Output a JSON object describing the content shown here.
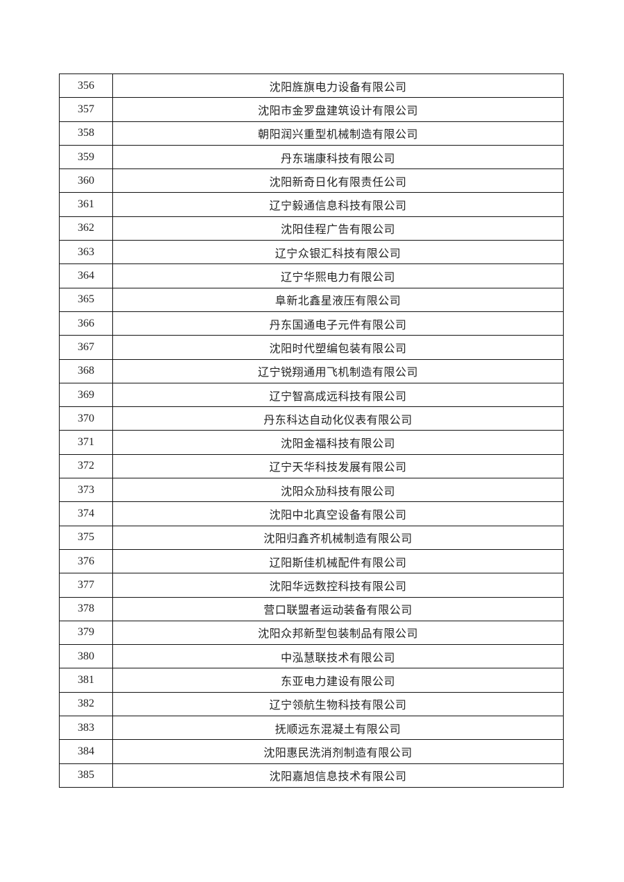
{
  "table": {
    "rows": [
      {
        "no": "356",
        "name": "沈阳旌旗电力设备有限公司"
      },
      {
        "no": "357",
        "name": "沈阳市金罗盘建筑设计有限公司"
      },
      {
        "no": "358",
        "name": "朝阳润兴重型机械制造有限公司"
      },
      {
        "no": "359",
        "name": "丹东瑞康科技有限公司"
      },
      {
        "no": "360",
        "name": "沈阳新奇日化有限责任公司"
      },
      {
        "no": "361",
        "name": "辽宁毅通信息科技有限公司"
      },
      {
        "no": "362",
        "name": "沈阳佳程广告有限公司"
      },
      {
        "no": "363",
        "name": "辽宁众银汇科技有限公司"
      },
      {
        "no": "364",
        "name": "辽宁华熙电力有限公司"
      },
      {
        "no": "365",
        "name": "阜新北鑫星液压有限公司"
      },
      {
        "no": "366",
        "name": "丹东国通电子元件有限公司"
      },
      {
        "no": "367",
        "name": "沈阳时代塑编包装有限公司"
      },
      {
        "no": "368",
        "name": "辽宁锐翔通用飞机制造有限公司"
      },
      {
        "no": "369",
        "name": "辽宁智高成远科技有限公司"
      },
      {
        "no": "370",
        "name": "丹东科达自动化仪表有限公司"
      },
      {
        "no": "371",
        "name": "沈阳金福科技有限公司"
      },
      {
        "no": "372",
        "name": "辽宁天华科技发展有限公司"
      },
      {
        "no": "373",
        "name": "沈阳众劢科技有限公司"
      },
      {
        "no": "374",
        "name": "沈阳中北真空设备有限公司"
      },
      {
        "no": "375",
        "name": "沈阳归鑫齐机械制造有限公司"
      },
      {
        "no": "376",
        "name": "辽阳斯佳机械配件有限公司"
      },
      {
        "no": "377",
        "name": "沈阳华远数控科技有限公司"
      },
      {
        "no": "378",
        "name": "营口联盟者运动装备有限公司"
      },
      {
        "no": "379",
        "name": "沈阳众邦新型包装制品有限公司"
      },
      {
        "no": "380",
        "name": "中泓慧联技术有限公司"
      },
      {
        "no": "381",
        "name": "东亚电力建设有限公司"
      },
      {
        "no": "382",
        "name": "辽宁领航生物科技有限公司"
      },
      {
        "no": "383",
        "name": "抚顺远东混凝土有限公司"
      },
      {
        "no": "384",
        "name": "沈阳惠民洗消剂制造有限公司"
      },
      {
        "no": "385",
        "name": "沈阳嘉旭信息技术有限公司"
      }
    ]
  }
}
